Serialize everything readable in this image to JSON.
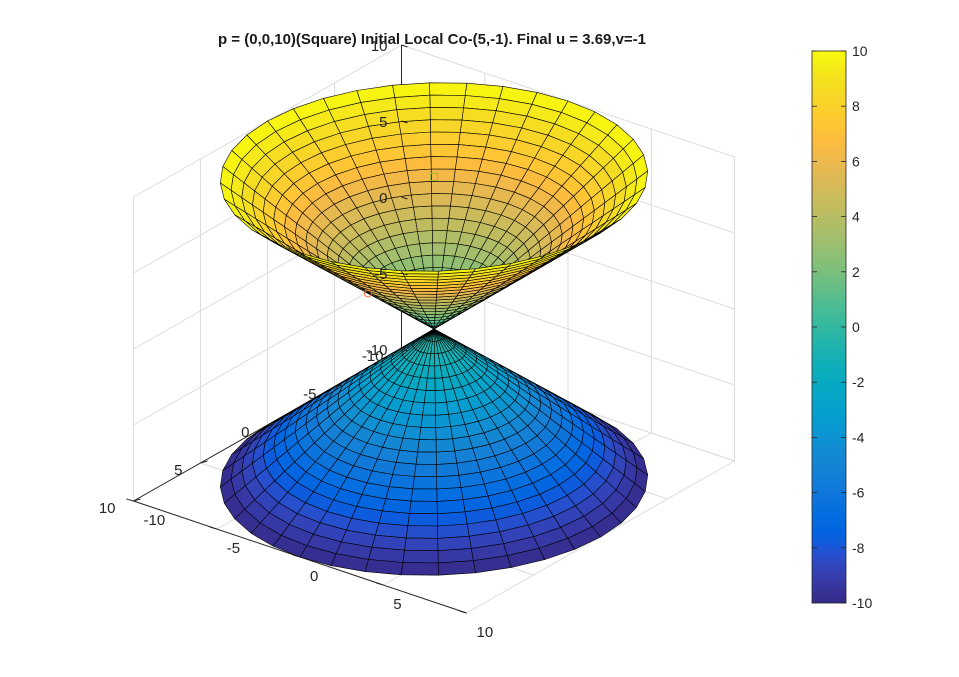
{
  "figure": {
    "title": "p = (0,0,10)(Square) Initial Local Co-(5,-1). Final u = 3.69,v=-1"
  },
  "chart_data": {
    "type": "surface",
    "surface": "double cone z = ±sqrt(x^2 + y^2)",
    "title": "p = (0,0,10)(Square) Initial Local Co-(5,-1). Final u = 3.69,v=-1",
    "xlim": [
      -10,
      10
    ],
    "ylim": [
      -10,
      10
    ],
    "zlim": [
      -10,
      10
    ],
    "x_ticks": [
      "-10",
      "-5",
      "0",
      "5",
      "10"
    ],
    "y_ticks": [
      "-10",
      "-5",
      "0",
      "5",
      "10"
    ],
    "z_ticks": [
      "-10",
      "-5",
      "0",
      "5",
      "10"
    ],
    "colorbar": {
      "colormap": "parula",
      "range": [
        -10,
        10
      ],
      "ticks": [
        "-10",
        "-8",
        "-6",
        "-4",
        "-2",
        "0",
        "2",
        "4",
        "6",
        "8",
        "10"
      ]
    },
    "grid": true,
    "radial_mesh_lines": 36,
    "ring_mesh_lines": 20,
    "markers": [
      {
        "name": "p",
        "shape": "square",
        "x": 0,
        "y": 0,
        "z": 10
      },
      {
        "name": "final",
        "shape": "circle",
        "x": 3.69,
        "y": -1,
        "z": 3.82
      }
    ]
  },
  "colors": {
    "grid": "#dcdcdc",
    "axis": "#262626",
    "mesh": "#000000",
    "marker_square": "#a8b830",
    "marker_circle": "#e07040"
  }
}
